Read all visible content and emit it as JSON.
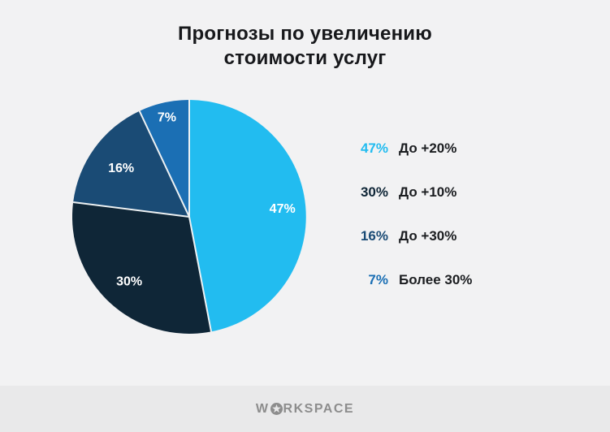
{
  "title": {
    "line1": "Прогнозы по увеличению",
    "line2": "стоимости услуг"
  },
  "chart_data": {
    "type": "pie",
    "title": "Прогнозы по увеличению стоимости услуг",
    "start_angle_deg": 0,
    "direction": "clockwise",
    "legend_position": "right",
    "slices": [
      {
        "label": "До +20%",
        "value": 47,
        "pct_label": "47%",
        "color": "#22BCF0"
      },
      {
        "label": "До +10%",
        "value": 30,
        "pct_label": "30%",
        "color": "#0F2637"
      },
      {
        "label": "До +30%",
        "value": 16,
        "pct_label": "16%",
        "color": "#1A4B75"
      },
      {
        "label": "Более 30%",
        "value": 7,
        "pct_label": "7%",
        "color": "#1B6FB4"
      }
    ],
    "slice_label_color": "#FFFFFF",
    "separator_color": "#EDF1F3"
  },
  "footer": {
    "brand": "WORKSPACE",
    "brand_prefix": "W",
    "brand_suffix": "RKSPACE",
    "star_icon": "star-in-circle"
  },
  "colors": {
    "background": "#F2F2F3",
    "footer_background": "#E9E9EA",
    "title_text": "#17181B",
    "legend_label_text": "#1B1D20",
    "logo": "#8D8D8D"
  }
}
